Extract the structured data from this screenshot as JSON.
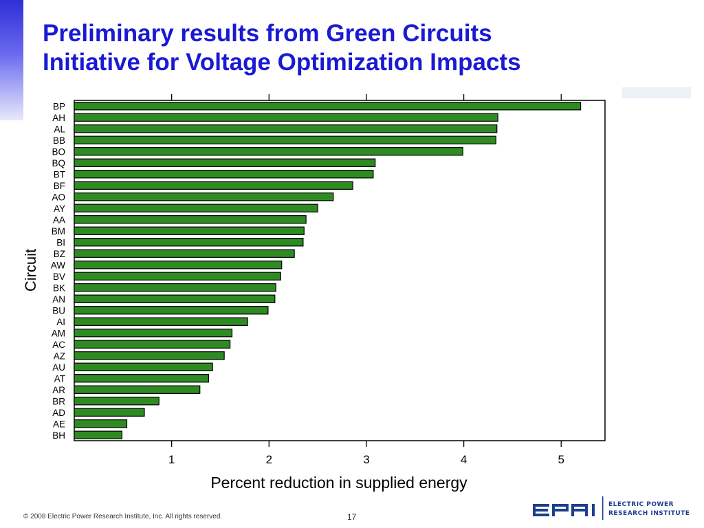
{
  "slide": {
    "title_line1": "Preliminary results from Green Circuits",
    "title_line2": "Initiative for Voltage Optimization Impacts",
    "footer": "© 2008 Electric Power Research Institute, Inc. All rights reserved.",
    "page_number": "17",
    "logo_mark": "EPRI",
    "logo_line1": "ELECTRIC POWER",
    "logo_line2": "RESEARCH INSTITUTE",
    "accent_color": "#1a1ad4"
  },
  "chart_data": {
    "type": "bar",
    "orientation": "horizontal",
    "xlabel": "Percent reduction in supplied energy",
    "ylabel": "Circuit",
    "xlim": [
      0,
      5.45
    ],
    "xticks": [
      1,
      2,
      3,
      4,
      5
    ],
    "grid": false,
    "bar_color": "#2e8b22",
    "categories": [
      "BP",
      "AH",
      "AL",
      "BB",
      "BO",
      "BQ",
      "BT",
      "BF",
      "AO",
      "AY",
      "AA",
      "BM",
      "BI",
      "BZ",
      "AW",
      "BV",
      "BK",
      "AN",
      "BU",
      "AI",
      "AM",
      "AC",
      "AZ",
      "AU",
      "AT",
      "AR",
      "BR",
      "AD",
      "AE",
      "BH"
    ],
    "values": [
      5.2,
      4.35,
      4.34,
      4.33,
      3.99,
      3.09,
      3.07,
      2.86,
      2.66,
      2.5,
      2.38,
      2.36,
      2.35,
      2.26,
      2.13,
      2.12,
      2.07,
      2.06,
      1.99,
      1.78,
      1.62,
      1.6,
      1.54,
      1.42,
      1.38,
      1.29,
      0.87,
      0.72,
      0.54,
      0.49
    ]
  }
}
